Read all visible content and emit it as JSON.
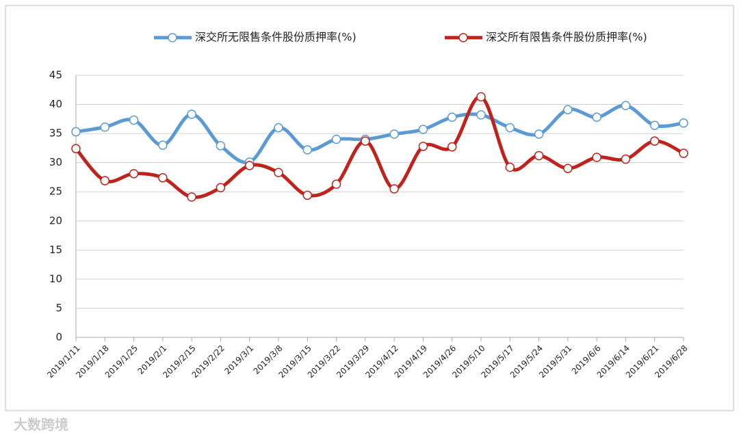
{
  "chart_data": {
    "type": "line",
    "categories": [
      "2019/1/11",
      "2019/1/18",
      "2019/1/25",
      "2019/2/1",
      "2019/2/15",
      "2019/2/22",
      "2019/3/1",
      "2019/3/8",
      "2019/3/15",
      "2019/3/22",
      "2019/3/29",
      "2019/4/12",
      "2019/4/19",
      "2019/4/26",
      "2019/5/10",
      "2019/5/17",
      "2019/5/24",
      "2019/5/31",
      "2019/6/6",
      "2019/6/14",
      "2019/6/21",
      "2019/6/28"
    ],
    "series": [
      {
        "name": "深交所无限售条件股份质押率(%)",
        "color": "#5b9bd5",
        "values": [
          35.3,
          36.1,
          37.3,
          33.0,
          38.3,
          32.9,
          30.1,
          36.0,
          32.2,
          34.0,
          34.0,
          34.9,
          35.7,
          37.8,
          38.2,
          36.0,
          34.9,
          39.1,
          37.8,
          39.8,
          36.4,
          36.8
        ]
      },
      {
        "name": "深交所有限售条件股份质押率(%)",
        "color": "#c0231b",
        "values": [
          32.4,
          26.9,
          28.1,
          27.4,
          24.1,
          25.7,
          29.5,
          28.3,
          24.4,
          26.3,
          33.7,
          25.5,
          32.8,
          32.7,
          41.3,
          29.2,
          31.2,
          29.0,
          30.9,
          30.6,
          33.7,
          31.6
        ]
      }
    ],
    "ylim": [
      0,
      45
    ],
    "yticks": [
      0,
      5,
      10,
      15,
      20,
      25,
      30,
      35,
      40,
      45
    ],
    "grid": true,
    "smooth": true,
    "watermark": "大数跨境"
  }
}
